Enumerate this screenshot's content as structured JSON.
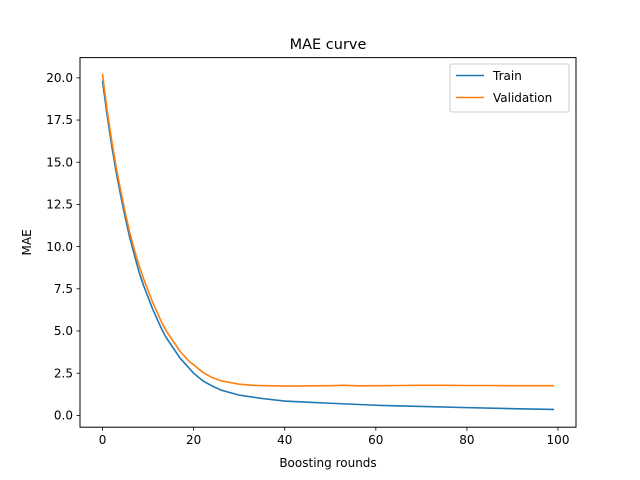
{
  "chart_data": {
    "type": "line",
    "title": "MAE curve",
    "xlabel": "Boosting rounds",
    "ylabel": "MAE",
    "xlim": [
      -4.95,
      103.95
    ],
    "ylim": [
      -0.7,
      21.2
    ],
    "xticks": [
      0,
      20,
      40,
      60,
      80,
      100
    ],
    "yticks": [
      0.0,
      2.5,
      5.0,
      7.5,
      10.0,
      12.5,
      15.0,
      17.5,
      20.0
    ],
    "ytick_labels": [
      "0.0",
      "2.5",
      "5.0",
      "7.5",
      "10.0",
      "12.5",
      "15.0",
      "17.5",
      "20.0"
    ],
    "grid": false,
    "legend_position": "top-right",
    "series": [
      {
        "name": "Train",
        "color": "#1f77b4",
        "x": [
          0,
          1,
          2,
          3,
          4,
          5,
          6,
          7,
          8,
          9,
          10,
          11,
          12,
          13,
          14,
          15,
          16,
          17,
          18,
          19,
          20,
          22,
          24,
          26,
          28,
          30,
          35,
          40,
          45,
          50,
          55,
          60,
          70,
          80,
          90,
          99
        ],
        "y": [
          19.8,
          17.8,
          16.0,
          14.4,
          13.0,
          11.7,
          10.5,
          9.5,
          8.5,
          7.7,
          7.0,
          6.3,
          5.7,
          5.1,
          4.6,
          4.2,
          3.8,
          3.4,
          3.1,
          2.8,
          2.5,
          2.05,
          1.75,
          1.5,
          1.35,
          1.2,
          1.0,
          0.85,
          0.78,
          0.72,
          0.66,
          0.6,
          0.53,
          0.46,
          0.4,
          0.35
        ]
      },
      {
        "name": "Validation",
        "color": "#ff7f0e",
        "x": [
          0,
          1,
          2,
          3,
          4,
          5,
          6,
          7,
          8,
          9,
          10,
          11,
          12,
          13,
          14,
          15,
          16,
          17,
          18,
          19,
          20,
          22,
          24,
          26,
          28,
          30,
          33,
          36,
          40,
          43,
          46,
          50,
          53,
          56,
          60,
          65,
          70,
          75,
          80,
          85,
          90,
          95,
          99
        ],
        "y": [
          20.2,
          18.1,
          16.3,
          14.7,
          13.3,
          12.0,
          10.8,
          9.8,
          8.9,
          8.1,
          7.4,
          6.7,
          6.1,
          5.5,
          5.0,
          4.6,
          4.2,
          3.8,
          3.5,
          3.2,
          3.0,
          2.55,
          2.25,
          2.05,
          1.95,
          1.85,
          1.78,
          1.76,
          1.74,
          1.74,
          1.75,
          1.76,
          1.78,
          1.75,
          1.76,
          1.77,
          1.78,
          1.78,
          1.77,
          1.77,
          1.76,
          1.76,
          1.76
        ]
      }
    ]
  }
}
